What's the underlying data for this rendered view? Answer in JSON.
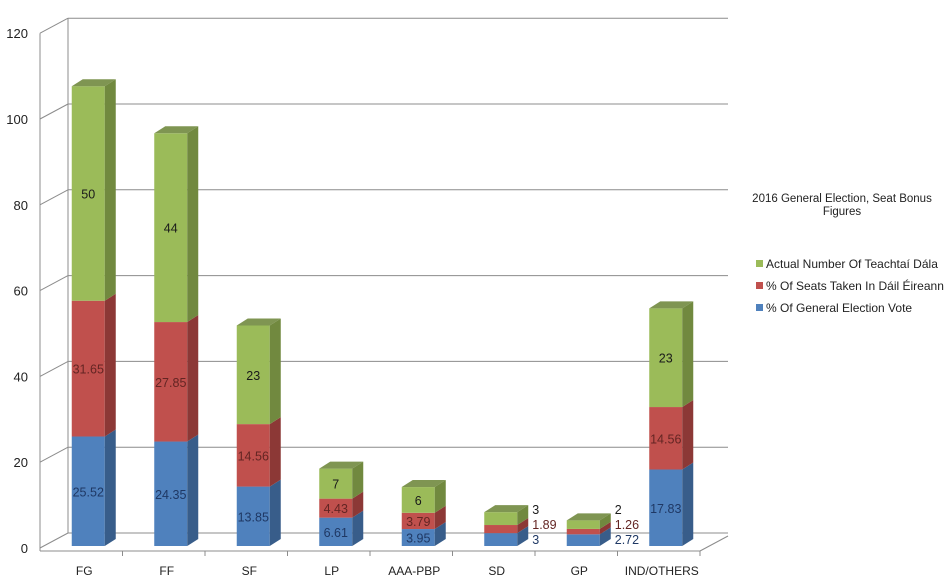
{
  "chart_data": {
    "type": "bar",
    "stacked": true,
    "three_d": true,
    "title": "2016 General Election, Seat Bonus Figures",
    "title_lines": [
      "2016 General Election, Seat Bonus",
      "Figures"
    ],
    "categories": [
      "FG",
      "FF",
      "SF",
      "LP",
      "AAA-PBP",
      "SD",
      "GP",
      "IND/OTHERS"
    ],
    "series": [
      {
        "name": "% Of General Election Vote",
        "color": "#4f81bd",
        "side": "#385d8a",
        "label_color": "#1f3864",
        "values": [
          25.52,
          24.35,
          13.85,
          6.61,
          3.95,
          3,
          2.72,
          17.83
        ]
      },
      {
        "name": "% Of Seats Taken In Dáil Éireann",
        "color": "#c0504d",
        "side": "#8c3836",
        "label_color": "#632523",
        "values": [
          31.65,
          27.85,
          14.56,
          4.43,
          3.79,
          1.89,
          1.26,
          14.56
        ]
      },
      {
        "name": "Actual Number Of Teachtaí Dála",
        "color": "#9bbb59",
        "side": "#71893f",
        "label_color": "#1a1a1a",
        "values": [
          50,
          44,
          23,
          7,
          6,
          3,
          2,
          23
        ]
      }
    ],
    "legend_order": [
      2,
      1,
      0
    ],
    "ylim": [
      0,
      120
    ],
    "yticks": [
      "0",
      "20",
      "40",
      "60",
      "80",
      "100",
      "120"
    ],
    "grid": true,
    "legend_placement": "right"
  }
}
